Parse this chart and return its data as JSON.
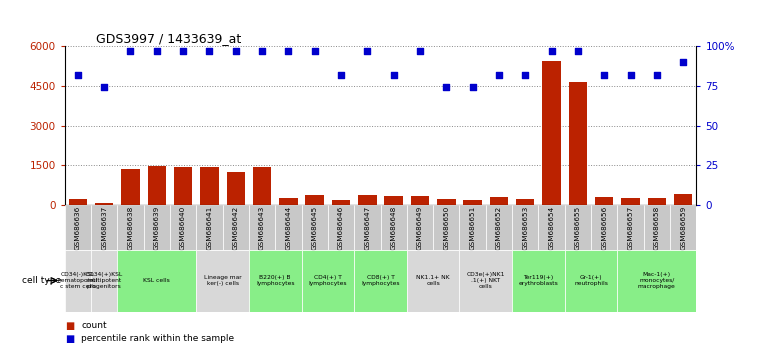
{
  "title": "GDS3997 / 1433639_at",
  "gsm_labels": [
    "GSM686636",
    "GSM686637",
    "GSM686638",
    "GSM686639",
    "GSM686640",
    "GSM686641",
    "GSM686642",
    "GSM686643",
    "GSM686644",
    "GSM686645",
    "GSM686646",
    "GSM686647",
    "GSM686648",
    "GSM686649",
    "GSM686650",
    "GSM686651",
    "GSM686652",
    "GSM686653",
    "GSM686654",
    "GSM686655",
    "GSM686656",
    "GSM686657",
    "GSM686658",
    "GSM686659"
  ],
  "counts": [
    220,
    100,
    1350,
    1470,
    1440,
    1450,
    1250,
    1460,
    280,
    380,
    190,
    380,
    340,
    340,
    230,
    190,
    330,
    230,
    5450,
    4650,
    320,
    280,
    280,
    430
  ],
  "percentiles": [
    82,
    74,
    97,
    97,
    97,
    97,
    97,
    97,
    97,
    97,
    82,
    97,
    82,
    97,
    74,
    74,
    82,
    82,
    97,
    97,
    82,
    82,
    82,
    90
  ],
  "cell_types": [
    {
      "label": "CD34(-)KSL\nhematopoieti\nc stem cells",
      "start": 0,
      "end": 1,
      "color": "#d8d8d8"
    },
    {
      "label": "CD34(+)KSL\nmultipotent\nprogenitors",
      "start": 1,
      "end": 2,
      "color": "#d8d8d8"
    },
    {
      "label": "KSL cells",
      "start": 2,
      "end": 5,
      "color": "#88ee88"
    },
    {
      "label": "Lineage mar\nker(-) cells",
      "start": 5,
      "end": 7,
      "color": "#d8d8d8"
    },
    {
      "label": "B220(+) B\nlymphocytes",
      "start": 7,
      "end": 9,
      "color": "#88ee88"
    },
    {
      "label": "CD4(+) T\nlymphocytes",
      "start": 9,
      "end": 11,
      "color": "#88ee88"
    },
    {
      "label": "CD8(+) T\nlymphocytes",
      "start": 11,
      "end": 13,
      "color": "#88ee88"
    },
    {
      "label": "NK1.1+ NK\ncells",
      "start": 13,
      "end": 15,
      "color": "#d8d8d8"
    },
    {
      "label": "CD3e(+)NK1\n.1(+) NKT\ncells",
      "start": 15,
      "end": 17,
      "color": "#d8d8d8"
    },
    {
      "label": "Ter119(+)\nerythroblasts",
      "start": 17,
      "end": 19,
      "color": "#88ee88"
    },
    {
      "label": "Gr-1(+)\nneutrophils",
      "start": 19,
      "end": 21,
      "color": "#88ee88"
    },
    {
      "label": "Mac-1(+)\nmonocytes/\nmacrophage",
      "start": 21,
      "end": 24,
      "color": "#88ee88"
    }
  ],
  "ylim_count": [
    0,
    6000
  ],
  "ylim_pct": [
    0,
    100
  ],
  "yticks_count": [
    0,
    1500,
    3000,
    4500,
    6000
  ],
  "yticks_pct": [
    0,
    25,
    50,
    75,
    100
  ],
  "bar_color": "#bb2200",
  "dot_color": "#0000cc",
  "bg_color": "#ffffff",
  "grid_color": "#888888",
  "tick_gray": "#c8c8c8"
}
